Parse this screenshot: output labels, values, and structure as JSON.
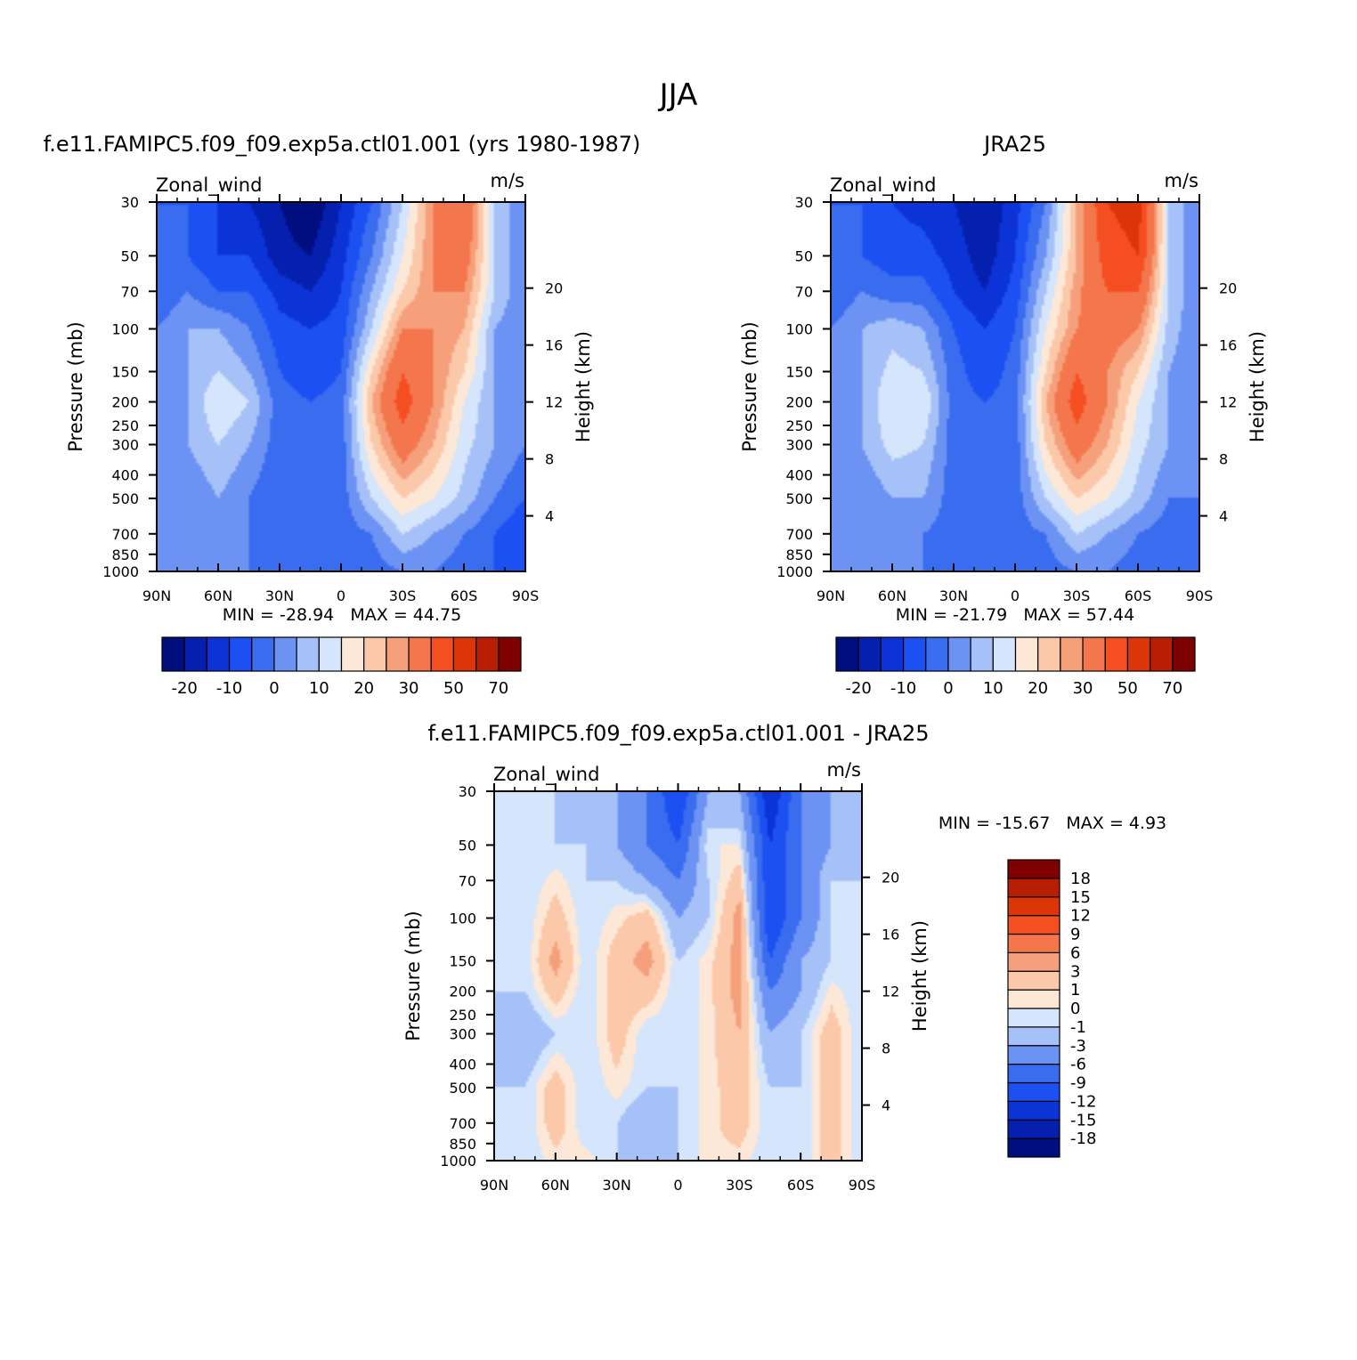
{
  "figure_title": "JJA",
  "colors": {
    "scale_a": [
      "#000e7e",
      "#0520ae",
      "#0b33d6",
      "#1c50f2",
      "#3a6cf0",
      "#6c93f3",
      "#a6c1f8",
      "#d5e5fb",
      "#fde8d7",
      "#fbc9aa",
      "#f6a07b",
      "#f4764c",
      "#f54e20",
      "#dc3507",
      "#b81e04",
      "#7f0000"
    ],
    "scale_d": [
      "#000e7e",
      "#0520ae",
      "#0b33d6",
      "#1c50f2",
      "#3a6cf0",
      "#6c93f3",
      "#a6c1f8",
      "#d5e5fb",
      "#fde8d7",
      "#fbc9aa",
      "#f6a07b",
      "#f4764c",
      "#f54e20",
      "#dc3507",
      "#b81e04",
      "#7f0000"
    ]
  },
  "chart_data": [
    {
      "type": "heatmap",
      "title": "f.e11.FAMIPC5.f09_f09.exp5a.ctl01.001 (yrs 1980-1987)",
      "variable": "Zonal_wind",
      "units": "m/s",
      "ylabel": "Pressure (mb)",
      "ylabel_right": "Height (km)",
      "x_ticks": [
        "90N",
        "60N",
        "30N",
        "0",
        "30S",
        "60S",
        "90S"
      ],
      "x_range": [
        90,
        -90
      ],
      "y_ticks": [
        "30",
        "50",
        "70",
        "100",
        "150",
        "200",
        "250",
        "300",
        "400",
        "500",
        "700",
        "850",
        "1000"
      ],
      "y_range": [
        1000,
        30
      ],
      "y_scale": "log",
      "right_ticks": [
        "20",
        "16",
        "12",
        "8",
        "4"
      ],
      "stats": {
        "min_label": "MIN =",
        "min": "-28.94",
        "max_label": "MAX =",
        "max": "44.75"
      },
      "colorbar": {
        "orientation": "horizontal",
        "labels": [
          "-20",
          "-10",
          "0",
          "10",
          "20",
          "30",
          "50",
          "70"
        ],
        "levels": [
          -25,
          -20,
          -15,
          -10,
          -5,
          0,
          5,
          10,
          15,
          20,
          25,
          30,
          40,
          50,
          60,
          70,
          80
        ]
      },
      "field": {
        "x": [
          90,
          75,
          60,
          45,
          30,
          15,
          0,
          -15,
          -30,
          -45,
          -60,
          -75,
          -90
        ],
        "p": [
          30,
          50,
          70,
          100,
          150,
          200,
          300,
          500,
          700,
          1000
        ],
        "values": [
          [
            -5,
            -5,
            -10,
            -15,
            -20,
            -25,
            -15,
            -5,
            10,
            30,
            40,
            10,
            0
          ],
          [
            -5,
            -5,
            -10,
            -10,
            -18,
            -20,
            -12,
            0,
            15,
            30,
            35,
            10,
            0
          ],
          [
            -5,
            0,
            -5,
            -5,
            -12,
            -15,
            -10,
            5,
            20,
            30,
            30,
            10,
            0
          ],
          [
            0,
            5,
            5,
            0,
            -8,
            -10,
            -8,
            10,
            30,
            30,
            25,
            5,
            0
          ],
          [
            0,
            5,
            10,
            5,
            -5,
            -8,
            -5,
            20,
            40,
            30,
            20,
            5,
            0
          ],
          [
            0,
            5,
            15,
            10,
            -3,
            -5,
            -3,
            25,
            45,
            30,
            15,
            5,
            0
          ],
          [
            0,
            5,
            10,
            5,
            -3,
            -5,
            -3,
            20,
            35,
            25,
            12,
            5,
            0
          ],
          [
            0,
            0,
            5,
            0,
            -5,
            -5,
            -3,
            10,
            20,
            15,
            8,
            0,
            -5
          ],
          [
            0,
            0,
            0,
            0,
            -3,
            -3,
            -3,
            0,
            10,
            5,
            0,
            -5,
            -10
          ],
          [
            0,
            0,
            0,
            0,
            0,
            -3,
            -3,
            -3,
            0,
            0,
            -3,
            -5,
            -10
          ]
        ]
      }
    },
    {
      "type": "heatmap",
      "title": "JRA25",
      "variable": "Zonal_wind",
      "units": "m/s",
      "ylabel": "Pressure (mb)",
      "ylabel_right": "Height (km)",
      "x_ticks": [
        "90N",
        "60N",
        "30N",
        "0",
        "30S",
        "60S",
        "90S"
      ],
      "x_range": [
        90,
        -90
      ],
      "y_ticks": [
        "30",
        "50",
        "70",
        "100",
        "150",
        "200",
        "250",
        "300",
        "400",
        "500",
        "700",
        "850",
        "1000"
      ],
      "y_range": [
        1000,
        30
      ],
      "y_scale": "log",
      "right_ticks": [
        "20",
        "16",
        "12",
        "8",
        "4"
      ],
      "stats": {
        "min_label": "MIN =",
        "min": "-21.79",
        "max_label": "MAX =",
        "max": "57.44"
      },
      "colorbar": {
        "orientation": "horizontal",
        "labels": [
          "-20",
          "-10",
          "0",
          "10",
          "20",
          "30",
          "50",
          "70"
        ],
        "levels": [
          -25,
          -20,
          -15,
          -10,
          -5,
          0,
          5,
          10,
          15,
          20,
          25,
          30,
          40,
          50,
          60,
          70,
          80
        ]
      },
      "field": {
        "x": [
          90,
          75,
          60,
          45,
          30,
          15,
          0,
          -15,
          -30,
          -45,
          -60,
          -75,
          -90
        ],
        "p": [
          30,
          50,
          70,
          100,
          150,
          200,
          300,
          500,
          700,
          1000
        ],
        "values": [
          [
            -5,
            -5,
            -10,
            -12,
            -15,
            -20,
            -12,
            0,
            25,
            50,
            55,
            10,
            0
          ],
          [
            -5,
            -5,
            -8,
            -8,
            -12,
            -18,
            -10,
            5,
            25,
            45,
            50,
            10,
            0
          ],
          [
            -5,
            0,
            -3,
            -3,
            -10,
            -15,
            -8,
            10,
            28,
            40,
            40,
            10,
            0
          ],
          [
            0,
            5,
            8,
            5,
            -5,
            -10,
            -5,
            15,
            30,
            35,
            30,
            8,
            0
          ],
          [
            0,
            5,
            12,
            10,
            -3,
            -8,
            -3,
            20,
            40,
            30,
            20,
            5,
            0
          ],
          [
            0,
            5,
            15,
            15,
            -3,
            -5,
            -3,
            25,
            45,
            30,
            15,
            5,
            0
          ],
          [
            0,
            5,
            12,
            10,
            -3,
            -5,
            -3,
            20,
            35,
            25,
            12,
            5,
            0
          ],
          [
            0,
            0,
            5,
            5,
            -3,
            -5,
            -3,
            10,
            20,
            15,
            8,
            0,
            0
          ],
          [
            0,
            0,
            0,
            0,
            -3,
            -3,
            -3,
            0,
            10,
            5,
            0,
            -3,
            -5
          ],
          [
            0,
            0,
            0,
            0,
            0,
            -3,
            -3,
            -3,
            0,
            0,
            -3,
            -5,
            -5
          ]
        ]
      }
    },
    {
      "type": "heatmap",
      "title": "f.e11.FAMIPC5.f09_f09.exp5a.ctl01.001 - JRA25",
      "variable": "Zonal_wind",
      "units": "m/s",
      "ylabel": "Pressure (mb)",
      "ylabel_right": "Height (km)",
      "x_ticks": [
        "90N",
        "60N",
        "30N",
        "0",
        "30S",
        "60S",
        "90S"
      ],
      "x_range": [
        90,
        -90
      ],
      "y_ticks": [
        "30",
        "50",
        "70",
        "100",
        "150",
        "200",
        "250",
        "300",
        "400",
        "500",
        "700",
        "850",
        "1000"
      ],
      "y_range": [
        1000,
        30
      ],
      "y_scale": "log",
      "right_ticks": [
        "20",
        "16",
        "12",
        "8",
        "4"
      ],
      "stats": {
        "min_label": "MIN =",
        "min": "-15.67",
        "max_label": "MAX =",
        "max": "4.93"
      },
      "colorbar": {
        "orientation": "vertical",
        "labels": [
          "18",
          "15",
          "12",
          "9",
          "6",
          "3",
          "1",
          "0",
          "-1",
          "-3",
          "-6",
          "-9",
          "-12",
          "-15",
          "-18"
        ],
        "levels": [
          -21,
          -18,
          -15,
          -12,
          -9,
          -6,
          -3,
          -1,
          0,
          1,
          3,
          6,
          9,
          12,
          15,
          18,
          21
        ]
      },
      "field": {
        "x": [
          90,
          75,
          60,
          45,
          30,
          15,
          0,
          -15,
          -30,
          -45,
          -60,
          -75,
          -90
        ],
        "p": [
          30,
          50,
          70,
          100,
          150,
          200,
          300,
          500,
          700,
          1000
        ],
        "values": [
          [
            -1,
            -1,
            -1,
            -3,
            -3,
            -6,
            -12,
            -3,
            -3,
            -15,
            -6,
            -3,
            -1
          ],
          [
            -1,
            -1,
            -1,
            -1,
            -3,
            -6,
            -9,
            0,
            0,
            -12,
            -6,
            -3,
            -1
          ],
          [
            -1,
            -1,
            0.5,
            -1,
            -1,
            -3,
            -6,
            -1,
            2,
            -12,
            -6,
            -1,
            -1
          ],
          [
            -1,
            -1,
            2,
            -1,
            0.5,
            2,
            -3,
            -1,
            4,
            -12,
            -6,
            -1,
            -1
          ],
          [
            -1,
            -1,
            4,
            -1,
            2,
            4,
            -1,
            0.5,
            4,
            -9,
            -3,
            -1,
            -1
          ],
          [
            -1,
            -1,
            2,
            -1,
            2,
            2,
            -1,
            0.5,
            4,
            -6,
            -3,
            0.5,
            -1
          ],
          [
            -1,
            -3,
            -1,
            -1,
            2,
            -1,
            -1,
            0.5,
            3,
            -3,
            -1,
            2,
            -1
          ],
          [
            -1,
            -1,
            2,
            -1,
            0.5,
            -1,
            -1,
            0.5,
            2,
            -1,
            -1,
            2,
            -1
          ],
          [
            -1,
            -1,
            2,
            -1,
            -1,
            -3,
            -1,
            0.5,
            2,
            -1,
            -1,
            2,
            -1
          ],
          [
            -1,
            -1,
            0.5,
            0.5,
            -1,
            -1,
            -1,
            0.5,
            0.5,
            -1,
            -1,
            2,
            -1
          ]
        ]
      }
    }
  ]
}
